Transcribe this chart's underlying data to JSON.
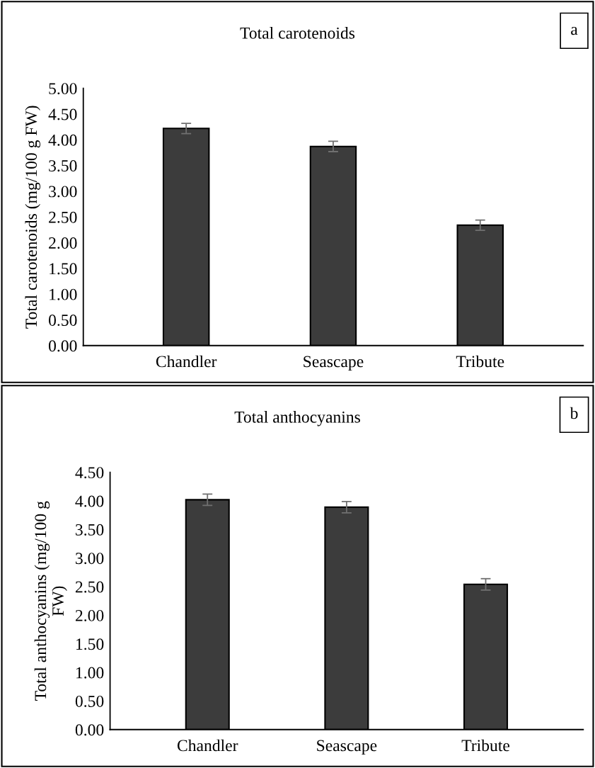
{
  "chart_data": [
    {
      "type": "bar",
      "title": "Total carotenoids",
      "ylabel": "Total carotenoids (mg/100 g FW)",
      "categories": [
        "Chandler",
        "Seascape",
        "Tribute"
      ],
      "values": [
        4.22,
        3.87,
        2.34
      ],
      "errors": [
        0.1,
        0.1,
        0.1
      ],
      "color": "#3c3c3c",
      "ylim": [
        0,
        5
      ],
      "yticks": [
        {
          "value": 0,
          "label": "0.00"
        },
        {
          "value": 0.5,
          "label": "0.50"
        },
        {
          "value": 1,
          "label": "1.00"
        },
        {
          "value": 1.5,
          "label": "1.50"
        },
        {
          "value": 2,
          "label": "2.00"
        },
        {
          "value": 2.5,
          "label": "2.50"
        },
        {
          "value": 3,
          "label": "3.00"
        },
        {
          "value": 3.5,
          "label": "3.50"
        },
        {
          "value": 4,
          "label": "4.00"
        },
        {
          "value": 4.5,
          "label": "4.50"
        },
        {
          "value": 5,
          "label": "5.00"
        }
      ],
      "annotations": [
        "a"
      ]
    },
    {
      "type": "bar",
      "title": "Total anthocyanins",
      "ylabel": "Total anthocyanins (mg/100 g\nFW)",
      "categories": [
        "Chandler",
        "Seascape",
        "Tribute"
      ],
      "values": [
        4.02,
        3.89,
        2.54
      ],
      "errors": [
        0.1,
        0.1,
        0.1
      ],
      "color": "#3c3c3c",
      "ylim": [
        0,
        4.5
      ],
      "yticks": [
        {
          "value": 0,
          "label": "0.00"
        },
        {
          "value": 0.5,
          "label": "0.50"
        },
        {
          "value": 1,
          "label": "1.00"
        },
        {
          "value": 1.5,
          "label": "1.50"
        },
        {
          "value": 2,
          "label": "2.00"
        },
        {
          "value": 2.5,
          "label": "2.50"
        },
        {
          "value": 3,
          "label": "3.00"
        },
        {
          "value": 3.5,
          "label": "3.50"
        },
        {
          "value": 4,
          "label": "4.00"
        },
        {
          "value": 4.5,
          "label": "4.50"
        }
      ],
      "annotations": [
        "b"
      ]
    }
  ]
}
